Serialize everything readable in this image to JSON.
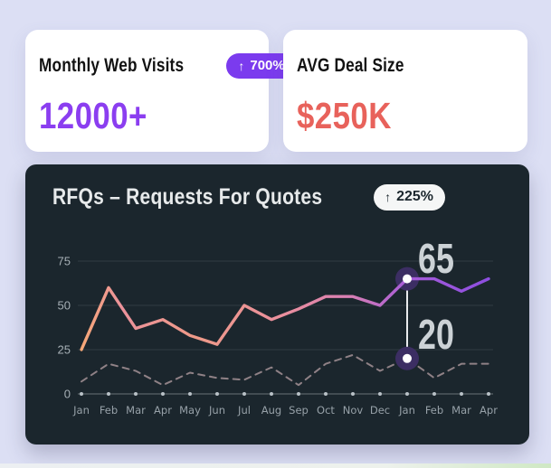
{
  "cards": [
    {
      "title": "Monthly Web Visits",
      "badge": {
        "arrow": "↑",
        "label": "700%"
      },
      "value": "12000+",
      "value_color": "#8b3ef0",
      "badge_color": "#7b3bee"
    },
    {
      "title": "AVG Deal Size",
      "value": "$250K",
      "value_color": "#e8625b"
    }
  ],
  "chart_data": {
    "type": "line",
    "title": "RFQs – Requests For Quotes",
    "badge": {
      "arrow": "↑",
      "label": "225%"
    },
    "categories": [
      "Jan",
      "Feb",
      "Mar",
      "Apr",
      "May",
      "Jun",
      "Jul",
      "Aug",
      "Sep",
      "Oct",
      "Nov",
      "Dec",
      "Jan",
      "Feb",
      "Mar",
      "Apr"
    ],
    "yticks": [
      0,
      25,
      50,
      75
    ],
    "ylim": [
      0,
      75
    ],
    "grid": "horizontal-only",
    "legend": "none",
    "series": [
      {
        "name": "rfqs-current",
        "style": "solid-gradient",
        "values": [
          25,
          60,
          37,
          42,
          33,
          28,
          50,
          42,
          48,
          55,
          55,
          50,
          65,
          65,
          58,
          65
        ]
      },
      {
        "name": "rfqs-previous",
        "style": "dashed",
        "values": [
          7,
          17,
          13,
          5,
          12,
          9,
          8,
          15,
          5,
          17,
          22,
          13,
          20,
          9,
          17,
          17
        ]
      }
    ],
    "annotation": {
      "index": 12,
      "high_label": "65",
      "low_label": "20"
    },
    "colors": {
      "background": "#1b262d",
      "line_gradient": [
        "#f6a877",
        "#ec929b",
        "#ee9a88",
        "#ea8f9e",
        "#d87fb4",
        "#a65cd8",
        "#8d4ee0"
      ],
      "gradient_offsets": [
        0,
        0.1,
        0.28,
        0.5,
        0.66,
        0.8,
        1
      ],
      "dashed_line": "#8f8186",
      "halo": "#3c2e63",
      "dot": "#ffffff",
      "annotation_text": "#ccd2d6",
      "axis_label": "#a7b0b6",
      "month_label": "#97a1a8",
      "gridline": "rgba(255,255,255,0.10)",
      "zero_line": "rgba(255,255,255,0.35)",
      "zero_dot": "#b9c1c7"
    }
  }
}
